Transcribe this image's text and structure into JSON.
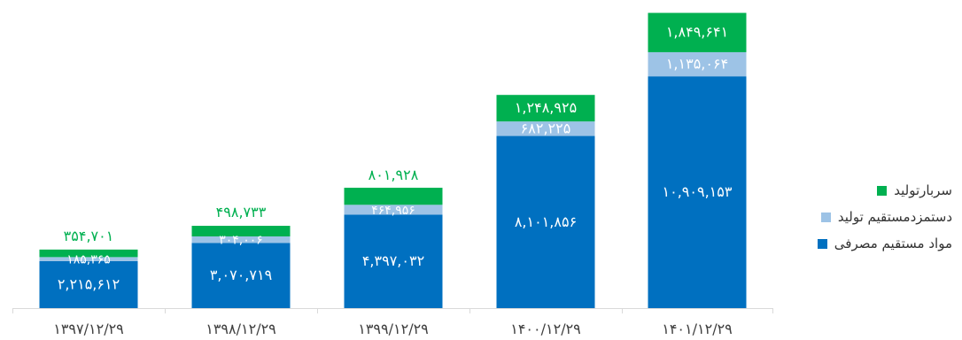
{
  "chart_data": {
    "type": "bar",
    "stacked": true,
    "categories": [
      "۱۳۹۷/۱۲/۲۹",
      "۱۳۹۸/۱۲/۲۹",
      "۱۳۹۹/۱۲/۲۹",
      "۱۴۰۰/۱۲/۲۹",
      "۱۴۰۱/۱۲/۲۹"
    ],
    "series": [
      {
        "name": "مواد مستقیم مصرفی",
        "color": "#0070c0",
        "values": [
          2215612,
          3070719,
          4397032,
          8101856,
          10909153
        ],
        "labels": [
          "۲,۲۱۵,۶۱۲",
          "۳,۰۷۰,۷۱۹",
          "۴,۳۹۷,۰۳۲",
          "۸,۱۰۱,۸۵۶",
          "۱۰,۹۰۹,۱۵۳"
        ]
      },
      {
        "name": "دستمزدمستقیم تولید",
        "color": "#9dc3e6",
        "values": [
          185365,
          304006,
          464956,
          682225,
          1135064
        ],
        "labels": [
          "۱۸۵,۳۶۵",
          "۳۰۴,۰۰۶",
          "۴۶۴,۹۵۶",
          "۶۸۲,۲۲۵",
          "۱,۱۳۵,۰۶۴"
        ]
      },
      {
        "name": "سربارتولید",
        "color": "#00b050",
        "values": [
          354701,
          498733,
          801928,
          1248925,
          1849641
        ],
        "labels": [
          "۳۵۴,۷۰۱",
          "۴۹۸,۷۳۳",
          "۸۰۱,۹۲۸",
          "۱,۲۴۸,۹۲۵",
          "۱,۸۴۹,۶۴۱"
        ]
      }
    ],
    "ylim": [
      0,
      14500000
    ],
    "grid": false,
    "legend_position": "right",
    "title": "",
    "xlabel": "",
    "ylabel": ""
  }
}
